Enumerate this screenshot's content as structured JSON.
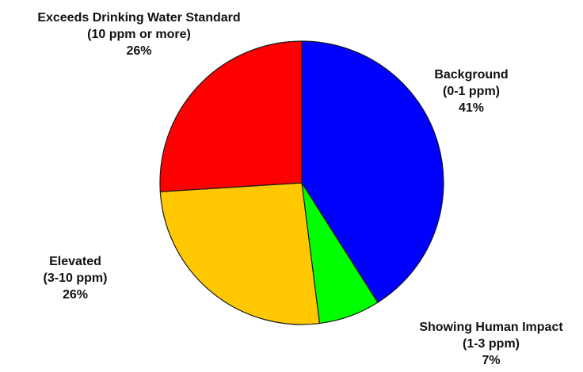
{
  "chart_data": {
    "type": "pie",
    "title": "",
    "slices": [
      {
        "category": "Background",
        "range": "(0-1 ppm)",
        "percent_label": "41%",
        "value": 41,
        "color": "#0000ff"
      },
      {
        "category": "Showing Human Impact",
        "range": "(1-3 ppm)",
        "percent_label": "7%",
        "value": 7,
        "color": "#00ff00"
      },
      {
        "category": "Elevated",
        "range": "(3-10 ppm)",
        "percent_label": "26%",
        "value": 26,
        "color": "#ffc800"
      },
      {
        "category": "Exceeds Drinking Water Standard",
        "range": "(10 ppm or more)",
        "percent_label": "26%",
        "value": 26,
        "color": "#ff0000"
      }
    ],
    "start": "12 o'clock",
    "direction": "clockwise"
  }
}
